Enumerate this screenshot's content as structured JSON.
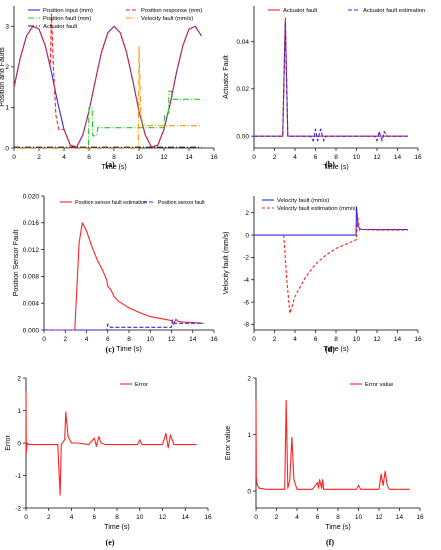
{
  "chart_data": [
    {
      "panel_label": "(a)",
      "type": "line",
      "xlabel": "Time (s)",
      "ylabel": "Position and Faults",
      "xlim": [
        0,
        16
      ],
      "ylim": [
        0,
        3.5
      ],
      "xticks": [
        0,
        2,
        4,
        6,
        8,
        10,
        12,
        14,
        16
      ],
      "yticks": [
        0,
        1,
        2,
        3
      ],
      "legend": [
        "Position input (mm)",
        "Position response (mm)",
        "Position fault (mm)",
        "Velocity fault (mm/s)",
        "Actuator fault"
      ],
      "legend_placement": "top",
      "series": [
        {
          "name": "Position input (mm)",
          "color": "#2a2aee",
          "dash": "",
          "x": [
            0,
            0.5,
            1,
            1.5,
            2,
            2.5,
            3,
            3.5,
            4,
            4.5,
            5,
            5.5,
            6,
            6.5,
            7,
            7.5,
            8,
            8.5,
            9,
            9.5,
            10,
            10.5,
            11,
            11.5,
            12,
            12.5,
            13,
            13.5,
            14,
            14.5,
            15
          ],
          "y": [
            1.5,
            2.22,
            2.76,
            3.0,
            2.93,
            2.52,
            1.86,
            1.11,
            0.46,
            0.07,
            0.02,
            0.32,
            0.91,
            1.66,
            2.36,
            2.84,
            3.0,
            2.84,
            2.36,
            1.66,
            0.91,
            0.32,
            0.02,
            0.07,
            0.46,
            1.11,
            1.86,
            2.52,
            2.93,
            3.0,
            2.76
          ]
        },
        {
          "name": "Position response (mm)",
          "color": "#ff2222",
          "dash": "4,2",
          "x": [
            0,
            0.5,
            1,
            1.5,
            2,
            2.5,
            2.9,
            3.0,
            3.15,
            3.35,
            3.6,
            4,
            4.5,
            5,
            5.5,
            6,
            6.5,
            7,
            7.5,
            8,
            8.5,
            9,
            9.5,
            10,
            10.5,
            11,
            11.5,
            12,
            12.5,
            13,
            13.5,
            14,
            14.5,
            15
          ],
          "y": [
            1.5,
            2.22,
            2.76,
            3.0,
            2.93,
            2.52,
            2.0,
            3.3,
            2.0,
            0.8,
            0.45,
            0.46,
            0.07,
            0.02,
            0.32,
            0.91,
            1.66,
            2.36,
            2.84,
            3.0,
            2.84,
            2.36,
            1.66,
            0.91,
            0.32,
            0.02,
            0.07,
            0.46,
            1.11,
            1.86,
            2.52,
            2.93,
            3.0,
            2.76
          ]
        },
        {
          "name": "Position fault (mm)",
          "color": "#22cc22",
          "dash": "6,2,1,2",
          "x": [
            0,
            5.95,
            6.0,
            6.25,
            6.3,
            6.6,
            6.7,
            12.0,
            12.05,
            12.35,
            12.4,
            12.6,
            12.7,
            15
          ],
          "y": [
            0,
            0,
            1.0,
            1.0,
            0.3,
            0.3,
            0.5,
            0.5,
            0.8,
            0.8,
            1.4,
            1.4,
            1.2,
            1.2
          ]
        },
        {
          "name": "Velocity fault (mm/s)",
          "color": "#ff9900",
          "dash": "6,2,1,2",
          "x": [
            0,
            9.95,
            10.0,
            10.15,
            10.3,
            10.5,
            15
          ],
          "y": [
            0,
            0,
            2.5,
            0.8,
            0.6,
            0.55,
            0.55
          ]
        },
        {
          "name": "Actuator fault",
          "color": "#222222",
          "dash": "6,2,1,2",
          "x": [
            0,
            15
          ],
          "y": [
            0.02,
            0.02
          ]
        }
      ]
    },
    {
      "panel_label": "(b)",
      "type": "line",
      "xlabel": "Time (s)",
      "ylabel": "Actuator Fault",
      "xlim": [
        0,
        16
      ],
      "ylim": [
        -0.005,
        0.055
      ],
      "xticks": [
        0,
        2,
        4,
        6,
        8,
        10,
        12,
        14,
        16
      ],
      "yticks": [
        0.0,
        0.02,
        0.04
      ],
      "ytick_labels": [
        "0.00",
        "0.02",
        "0.04"
      ],
      "legend": [
        "Actuator fault",
        "Actuator fault estimation"
      ],
      "legend_placement": "top",
      "series": [
        {
          "name": "Actuator fault",
          "color": "#ff2222",
          "dash": "",
          "x": [
            0,
            2.8,
            3.05,
            3.3,
            15
          ],
          "y": [
            0,
            0,
            0.05,
            0,
            0
          ]
        },
        {
          "name": "Actuator fault estimation",
          "color": "#2a2aee",
          "dash": "4,2",
          "x": [
            0,
            2.8,
            3.05,
            3.3,
            5.5,
            5.8,
            6.0,
            6.2,
            6.5,
            6.8,
            7.0,
            11.8,
            12.0,
            12.2,
            12.5,
            12.7,
            13.0,
            15
          ],
          "y": [
            0,
            0,
            0.048,
            0,
            0,
            -0.002,
            0.003,
            -0.002,
            0.003,
            -0.002,
            0,
            0,
            -0.002,
            0.002,
            -0.002,
            0.002,
            0,
            0
          ]
        }
      ]
    },
    {
      "panel_label": "(c)",
      "type": "line",
      "xlabel": "Time (s)",
      "ylabel": "Position Sensor Fault",
      "xlim": [
        0,
        16
      ],
      "ylim": [
        0,
        0.02
      ],
      "xticks": [
        0,
        2,
        4,
        6,
        8,
        10,
        12,
        14,
        16
      ],
      "yticks": [
        0.0,
        0.004,
        0.008,
        0.012,
        0.016,
        0.02
      ],
      "ytick_labels": [
        "0.000",
        "0.004",
        "0.008",
        "0.012",
        "0.016",
        "0.020"
      ],
      "legend": [
        "Position sensor fault estimation",
        "Position sensor fault"
      ],
      "legend_placement": "top",
      "series": [
        {
          "name": "Position sensor fault estimation",
          "color": "#ff2222",
          "dash": "",
          "x": [
            0,
            2.9,
            3.3,
            3.6,
            4.0,
            4.5,
            5.0,
            5.5,
            5.9,
            6.0,
            6.3,
            6.6,
            7.0,
            8.0,
            9.0,
            10.0,
            11.0,
            12.0,
            12.2,
            12.4,
            12.6,
            13.0,
            14.0,
            15.0
          ],
          "y": [
            0,
            0,
            0.013,
            0.016,
            0.0148,
            0.0125,
            0.0105,
            0.009,
            0.0075,
            0.0065,
            0.006,
            0.005,
            0.0043,
            0.0033,
            0.0026,
            0.002,
            0.0017,
            0.0014,
            0.0008,
            0.0016,
            0.0013,
            0.0012,
            0.0011,
            0.001
          ]
        },
        {
          "name": "Position sensor fault",
          "color": "#2a2aee",
          "dash": "4,2",
          "x": [
            0,
            5.9,
            6.0,
            6.15,
            6.3,
            12.0,
            12.1,
            12.3,
            15
          ],
          "y": [
            0,
            0,
            0.0009,
            0.0005,
            0.0004,
            0.0004,
            0.0015,
            0.001,
            0.001
          ]
        }
      ]
    },
    {
      "panel_label": "(d)",
      "type": "line",
      "xlabel": "Time (s)",
      "ylabel": "Velocity fault (mm/s)",
      "xlim": [
        0,
        16
      ],
      "ylim": [
        -8.5,
        3.5
      ],
      "xticks": [
        0,
        2,
        4,
        6,
        8,
        10,
        12,
        14,
        16
      ],
      "yticks": [
        -8,
        -6,
        -4,
        -2,
        0,
        2
      ],
      "legend": [
        "Velocity fault (mm/s)",
        "Velocity fault estimation (mm/s)"
      ],
      "legend_placement": "top",
      "series": [
        {
          "name": "Velocity fault (mm/s)",
          "color": "#2a2aee",
          "dash": "",
          "x": [
            0,
            9.95,
            10.0,
            10.15,
            10.3,
            10.5,
            15
          ],
          "y": [
            0,
            0,
            2.5,
            0.8,
            0.6,
            0.5,
            0.5
          ]
        },
        {
          "name": "Velocity fault estimation (mm/s)",
          "color": "#ff2222",
          "dash": "3,2",
          "x": [
            2.9,
            3.2,
            3.5,
            4.0,
            5.0,
            6.0,
            7.0,
            8.0,
            9.0,
            10.0,
            10.1,
            10.3,
            10.6,
            12.0,
            15.0
          ],
          "y": [
            0,
            -4.0,
            -7.0,
            -5.5,
            -3.8,
            -2.6,
            -1.8,
            -1.2,
            -0.8,
            -0.4,
            1.8,
            0.4,
            0.5,
            0.45,
            0.45
          ]
        }
      ]
    },
    {
      "panel_label": "(e)",
      "type": "line",
      "xlabel": "Time (s)",
      "ylabel": "Error",
      "xlim": [
        0,
        16
      ],
      "ylim": [
        -2,
        2
      ],
      "xticks": [
        0,
        2,
        4,
        6,
        8,
        10,
        12,
        14,
        16
      ],
      "yticks": [
        -2,
        -1,
        0,
        1,
        2
      ],
      "legend": [
        "Error"
      ],
      "legend_placement": "top-right",
      "series": [
        {
          "name": "Error",
          "color": "#ff2222",
          "dash": "",
          "x": [
            0,
            0.03,
            0.1,
            0.3,
            1,
            2,
            2.8,
            3.0,
            3.1,
            3.4,
            3.5,
            3.7,
            4.0,
            4.5,
            5.5,
            6.0,
            6.2,
            6.4,
            6.6,
            7,
            9.8,
            10.0,
            10.2,
            12,
            12.3,
            12.5,
            12.7,
            13,
            15
          ],
          "y": [
            1.6,
            -0.3,
            0.0,
            -0.05,
            -0.05,
            -0.05,
            -0.05,
            -1.6,
            -0.05,
            0.1,
            0.95,
            0.2,
            0.0,
            0.0,
            -0.05,
            0.15,
            -0.1,
            0.2,
            0.0,
            -0.05,
            -0.05,
            0.1,
            -0.05,
            -0.05,
            0.3,
            -0.15,
            0.25,
            -0.05,
            -0.05
          ]
        }
      ]
    },
    {
      "panel_label": "(f)",
      "type": "line",
      "xlabel": "Time (s)",
      "ylabel": "Error value",
      "xlim": [
        0,
        16
      ],
      "ylim": [
        -0.3,
        2
      ],
      "xticks": [
        0,
        2,
        4,
        6,
        8,
        10,
        12,
        14,
        16
      ],
      "yticks": [
        0,
        1,
        2
      ],
      "legend": [
        "Error value"
      ],
      "legend_placement": "top-right",
      "series": [
        {
          "name": "Error value",
          "color": "#ff2222",
          "dash": "",
          "x": [
            0,
            0.03,
            0.1,
            0.3,
            1,
            2,
            2.8,
            2.95,
            3.1,
            3.3,
            3.5,
            3.7,
            4.0,
            5.5,
            6.0,
            6.1,
            6.2,
            6.4,
            6.5,
            6.6,
            7,
            9.8,
            10.0,
            10.2,
            12,
            12.2,
            12.4,
            12.6,
            12.8,
            13,
            15
          ],
          "y": [
            1.6,
            0.25,
            0.12,
            0.05,
            0.03,
            0.03,
            0.03,
            1.6,
            0.05,
            0.2,
            0.95,
            0.2,
            0.03,
            0.03,
            0.15,
            0.05,
            0.2,
            0.05,
            0.2,
            0.03,
            0.03,
            0.03,
            0.1,
            0.03,
            0.03,
            0.3,
            0.1,
            0.35,
            0.1,
            0.03,
            0.03
          ]
        }
      ]
    }
  ]
}
